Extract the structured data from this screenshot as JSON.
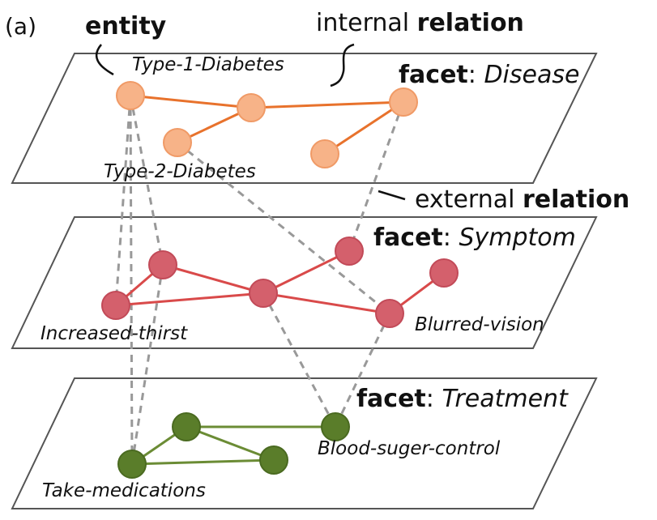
{
  "panel_label": "(a)",
  "annotations": {
    "entity": "entity",
    "internal_prefix": "internal ",
    "internal_bold": "relation",
    "external_prefix": "external ",
    "external_bold": "relation"
  },
  "facets": [
    {
      "id": "disease",
      "prefix": "facet",
      "sep": ": ",
      "name": "Disease"
    },
    {
      "id": "symptom",
      "prefix": "facet",
      "sep": ": ",
      "name": "Symptom"
    },
    {
      "id": "treatment",
      "prefix": "facet",
      "sep": ": ",
      "name": "Treatment"
    }
  ],
  "entity_labels": {
    "t1d": "Type-1-Diabetes",
    "t2d": "Type-2-Diabetes",
    "thirst": "Increased-thirst",
    "blur": "Blurred-vision",
    "sugar": "Blood-suger-control",
    "meds": "Take-medications"
  },
  "colors": {
    "disease_node": "#f7b388",
    "disease_node_stroke": "#f09a66",
    "disease_edge": "#e8722c",
    "symptom_node": "#d4606c",
    "symptom_node_stroke": "#c24a58",
    "symptom_edge": "#d94a4a",
    "treatment_node": "#5a7d2a",
    "treatment_node_stroke": "#4a6a20",
    "treatment_edge": "#6b8c35",
    "external_edge": "#999999",
    "plane_stroke": "#555555"
  }
}
